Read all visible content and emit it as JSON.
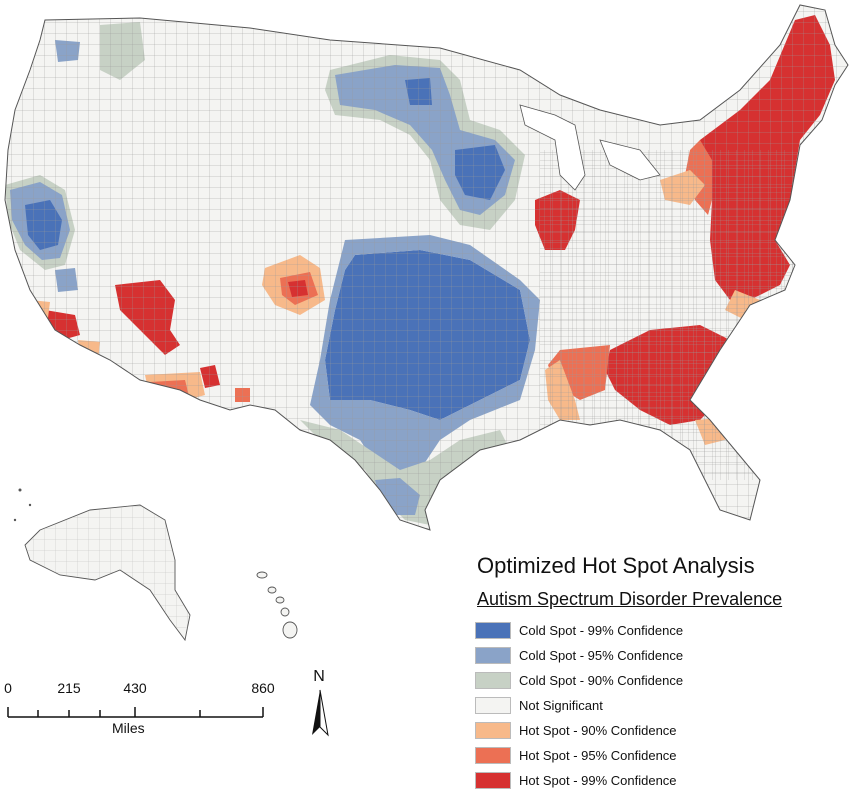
{
  "legend": {
    "title": "Optimized Hot Spot Analysis",
    "subtitle": "Autism Spectrum Disorder Prevalence",
    "items": [
      {
        "label": "Cold Spot - 99% Confidence",
        "color": "#4a72b8"
      },
      {
        "label": "Cold Spot - 95% Confidence",
        "color": "#8aa3c8"
      },
      {
        "label": "Cold Spot - 90% Confidence",
        "color": "#c7d1c5"
      },
      {
        "label": "Not Significant",
        "color": "#f4f4f2"
      },
      {
        "label": "Hot Spot - 90% Confidence",
        "color": "#f7b98a"
      },
      {
        "label": "Hot Spot - 95% Confidence",
        "color": "#ec7054"
      },
      {
        "label": "Hot Spot - 99% Confidence",
        "color": "#d63131"
      }
    ]
  },
  "scale": {
    "ticks": [
      "0",
      "215",
      "430",
      "860"
    ],
    "units": "Miles"
  },
  "north": {
    "label": "N"
  }
}
